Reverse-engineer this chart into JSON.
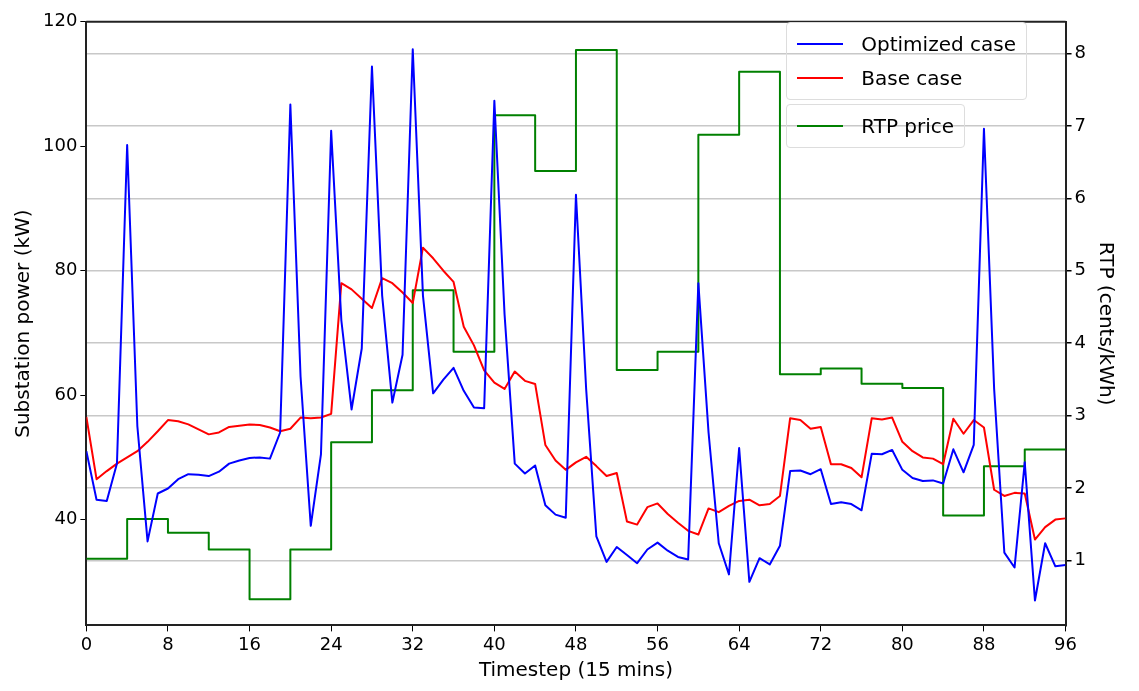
{
  "chart_data": {
    "type": "line",
    "xlabel": "Timestep (15 mins)",
    "ylabel": "Substation power (kW)",
    "y2label": "RTP (cents/kWh)",
    "x": [
      0,
      1,
      2,
      3,
      4,
      5,
      6,
      7,
      8,
      9,
      10,
      11,
      12,
      13,
      14,
      15,
      16,
      17,
      18,
      19,
      20,
      21,
      22,
      23,
      24,
      25,
      26,
      27,
      28,
      29,
      30,
      31,
      32,
      33,
      34,
      35,
      36,
      37,
      38,
      39,
      40,
      41,
      42,
      43,
      44,
      45,
      46,
      47,
      48,
      49,
      50,
      51,
      52,
      53,
      54,
      55,
      56,
      57,
      58,
      59,
      60,
      61,
      62,
      63,
      64,
      65,
      66,
      67,
      68,
      69,
      70,
      71,
      72,
      73,
      74,
      75,
      76,
      77,
      78,
      79,
      80,
      81,
      82,
      83,
      84,
      85,
      86,
      87,
      88,
      89,
      90,
      91,
      92,
      93,
      94,
      95,
      96
    ],
    "series": [
      {
        "name": "Optimized case",
        "color": "#0000ff",
        "values": [
          51,
          43.2,
          43,
          49,
          100.2,
          55,
          36.5,
          44.2,
          45,
          46.5,
          47.3,
          47.2,
          47,
          47.7,
          49,
          49.5,
          49.9,
          50,
          49.8,
          54,
          106.7,
          63,
          39,
          50.5,
          102.5,
          72,
          57.7,
          67.5,
          112.8,
          76,
          58.8,
          66.5,
          115.6,
          76,
          60.3,
          62.5,
          64.4,
          60.7,
          58,
          57.9,
          107.3,
          73,
          49,
          47.4,
          48.7,
          42.3,
          40.8,
          40.3,
          92.2,
          61,
          37.3,
          33.2,
          35.6,
          34.3,
          33,
          35.2,
          36.3,
          35,
          34,
          33.6,
          78,
          54,
          36.2,
          31.2,
          51.5,
          30,
          33.8,
          32.8,
          35.8,
          47.8,
          47.9,
          47.3,
          48.1,
          42.5,
          42.8,
          42.5,
          41.5,
          50.6,
          50.5,
          51.2,
          48,
          46.7,
          46.2,
          46.3,
          45.8,
          51.3,
          47.6,
          52,
          102.8,
          61,
          34.7,
          32.3,
          49.2,
          27,
          36.2,
          32.5,
          32.7
        ]
      },
      {
        "name": "Base case",
        "color": "#ff0000",
        "values": [
          56.5,
          46.5,
          47.8,
          49,
          50,
          51,
          52.5,
          54.2,
          56,
          55.8,
          55.3,
          54.5,
          53.7,
          54,
          54.9,
          55.1,
          55.3,
          55.2,
          54.8,
          54.2,
          54.6,
          56.4,
          56.3,
          56.4,
          57,
          78,
          77,
          75.5,
          74,
          78.8,
          78,
          76.5,
          74.8,
          83.7,
          82,
          80,
          78.2,
          71,
          68,
          64,
          62,
          61,
          63.8,
          62.3,
          61.8,
          52,
          49.5,
          48,
          49.2,
          50.1,
          48.6,
          47,
          47.5,
          39.7,
          39.2,
          42,
          42.6,
          40.9,
          39.5,
          38.2,
          37.6,
          41.8,
          41.2,
          42.2,
          43,
          43.2,
          42.3,
          42.5,
          43.8,
          56.3,
          56,
          54.6,
          54.9,
          48.9,
          48.9,
          48.3,
          46.8,
          56.3,
          56.1,
          56.4,
          52.5,
          51,
          50,
          49.8,
          48.9,
          56.2,
          53.8,
          56,
          54.8,
          44.8,
          43.8,
          44.3,
          44.2,
          36.8,
          38.8,
          40,
          40.2
        ]
      },
      {
        "name": "RTP price",
        "type": "step",
        "axis": "y2",
        "color": "#008000",
        "x": [
          0,
          4,
          8,
          12,
          16,
          20,
          24,
          28,
          32,
          36,
          40,
          44,
          48,
          52,
          56,
          60,
          64,
          68,
          72,
          76,
          80,
          84,
          88,
          92,
          96
        ],
        "values": [
          1.02,
          1.57,
          1.38,
          1.15,
          0.46,
          1.15,
          2.63,
          3.35,
          4.73,
          3.88,
          7.15,
          6.38,
          8.05,
          3.63,
          3.88,
          6.88,
          7.75,
          3.57,
          3.65,
          3.44,
          3.38,
          1.62,
          2.3,
          2.53,
          2.53
        ]
      }
    ],
    "xlim": [
      0,
      96
    ],
    "xticks": [
      0,
      8,
      16,
      24,
      32,
      40,
      48,
      56,
      64,
      72,
      80,
      88,
      96
    ],
    "ylim": [
      23,
      120
    ],
    "yticks": [
      40,
      60,
      80,
      100,
      120
    ],
    "y2lim": [
      0.1,
      8.44
    ],
    "y2ticks": [
      1,
      2,
      3,
      4,
      5,
      6,
      7,
      8
    ],
    "grid": "y",
    "legend": "top right"
  }
}
